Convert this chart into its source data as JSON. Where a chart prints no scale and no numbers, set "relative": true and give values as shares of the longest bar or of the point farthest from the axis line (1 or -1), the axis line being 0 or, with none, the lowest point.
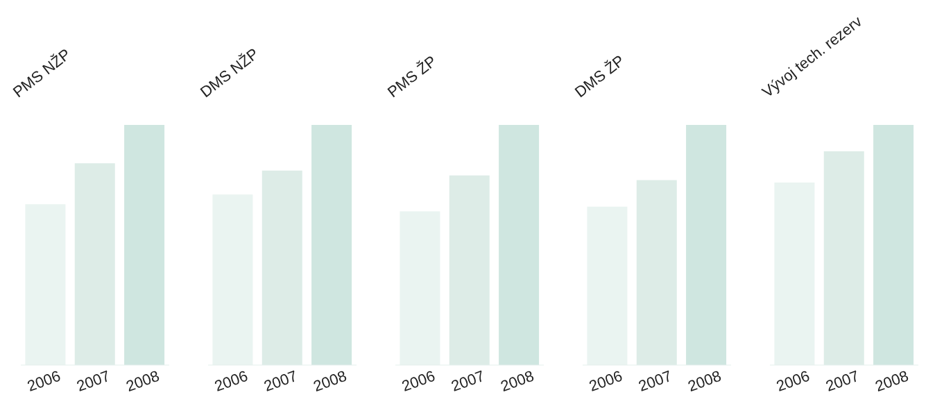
{
  "chart_data": [
    {
      "type": "bar",
      "title": "PMS NŽP",
      "categories": [
        "2006",
        "2007",
        "2008"
      ],
      "values": [
        0.67,
        0.84,
        1
      ],
      "colors": [
        "#eaf4f1",
        "#ddece7",
        "#cfe6e0"
      ],
      "relative": true
    },
    {
      "type": "bar",
      "title": "DMS NŽP",
      "categories": [
        "2006",
        "2007",
        "2008"
      ],
      "values": [
        0.71,
        0.81,
        1
      ],
      "colors": [
        "#eaf4f1",
        "#ddece7",
        "#cfe6e0"
      ],
      "relative": true
    },
    {
      "type": "bar",
      "title": "PMS ŽP",
      "categories": [
        "2006",
        "2007",
        "2008"
      ],
      "values": [
        0.64,
        0.79,
        1
      ],
      "colors": [
        "#eaf4f1",
        "#ddece7",
        "#cfe6e0"
      ],
      "relative": true
    },
    {
      "type": "bar",
      "title": "DMS ŽP",
      "categories": [
        "2006",
        "2007",
        "2008"
      ],
      "values": [
        0.66,
        0.77,
        1
      ],
      "colors": [
        "#eaf4f1",
        "#ddece7",
        "#cfe6e0"
      ],
      "relative": true
    },
    {
      "type": "bar",
      "title": "Vývoj tech. rezerv",
      "categories": [
        "2006",
        "2007",
        "2008"
      ],
      "values": [
        0.76,
        0.89,
        1
      ],
      "colors": [
        "#eaf4f1",
        "#ddece7",
        "#cfe6e0"
      ],
      "relative": true
    }
  ]
}
